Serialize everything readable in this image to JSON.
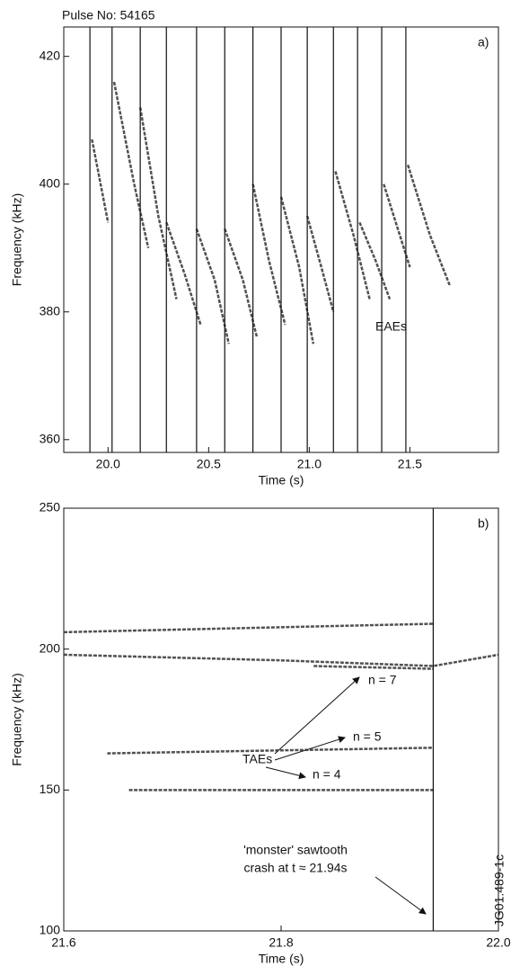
{
  "chart_data": [
    {
      "type": "spectrogram",
      "title": "Pulse No: 54165",
      "xlabel": "Time (s)",
      "ylabel": "Frequency (kHz)",
      "xlim": [
        19.78,
        21.94
      ],
      "ylim": [
        358,
        424.6
      ],
      "xticks": [
        {
          "value": 20,
          "label": "20.0"
        },
        20.5,
        {
          "value": 21,
          "label": "21.0"
        },
        21.5
      ],
      "yticks": [
        360,
        380,
        400,
        420
      ],
      "crashes": [
        19.91,
        20.02,
        20.16,
        20.29,
        20.44,
        20.58,
        20.72,
        20.86,
        20.99,
        21.12,
        21.24,
        21.36,
        21.48
      ],
      "color": "#333333",
      "traces": [
        {
          "x": [
            19.92,
            20.0
          ],
          "values": [
            407,
            394
          ]
        },
        {
          "x": [
            20.03,
            20.13,
            20.2
          ],
          "values": [
            416,
            400,
            390
          ]
        },
        {
          "x": [
            20.16,
            20.25,
            20.34
          ],
          "values": [
            412,
            395,
            382
          ]
        },
        {
          "x": [
            20.29,
            20.38,
            20.46
          ],
          "values": [
            394,
            386,
            378
          ]
        },
        {
          "x": [
            20.44,
            20.53,
            20.6
          ],
          "values": [
            393,
            385,
            375
          ]
        },
        {
          "x": [
            20.58,
            20.67,
            20.74
          ],
          "values": [
            393,
            385,
            376
          ]
        },
        {
          "x": [
            20.72,
            20.8,
            20.88
          ],
          "values": [
            400,
            388,
            378
          ]
        },
        {
          "x": [
            20.86,
            20.95,
            21.02
          ],
          "values": [
            398,
            387,
            375
          ]
        },
        {
          "x": [
            20.99,
            21.06,
            21.12
          ],
          "values": [
            395,
            387,
            380
          ]
        },
        {
          "x": [
            21.13,
            21.22,
            21.3
          ],
          "values": [
            402,
            392,
            382
          ]
        },
        {
          "x": [
            21.25,
            21.33,
            21.4
          ],
          "values": [
            394,
            388,
            382
          ]
        },
        {
          "x": [
            21.37,
            21.45,
            21.5
          ],
          "values": [
            400,
            392,
            387
          ]
        },
        {
          "x": [
            21.49,
            21.6,
            21.7
          ],
          "values": [
            403,
            392,
            384
          ]
        }
      ],
      "annotations": [
        "a)",
        "EAEs"
      ]
    },
    {
      "type": "spectrogram",
      "xlabel": "Time (s)",
      "ylabel": "Frequency (kHz)",
      "xlim": [
        21.6,
        22.0
      ],
      "ylim": [
        100,
        250
      ],
      "xticks": [
        21.6,
        21.8,
        {
          "value": 22,
          "label": "22.0"
        }
      ],
      "yticks": [
        100,
        150,
        200,
        250
      ],
      "crashes": [
        21.94
      ],
      "color": "#333333",
      "traces": [
        {
          "x": [
            21.6,
            21.8,
            21.94,
            22.0
          ],
          "values": [
            198,
            196,
            194,
            198
          ]
        },
        {
          "x": [
            21.6,
            21.94
          ],
          "values": [
            206,
            209
          ]
        },
        {
          "x": [
            21.83,
            21.94
          ],
          "values": [
            194,
            193
          ]
        },
        {
          "x": [
            21.64,
            21.94
          ],
          "values": [
            163,
            165
          ]
        },
        {
          "x": [
            21.66,
            21.94
          ],
          "values": [
            150,
            150
          ]
        }
      ],
      "annotations": [
        "b)",
        "TAEs",
        "n = 7",
        "n = 5",
        "n = 4",
        "'monster' sawtooth",
        "crash at t ≈ 21.94s",
        "JG01.489-1c"
      ]
    }
  ]
}
